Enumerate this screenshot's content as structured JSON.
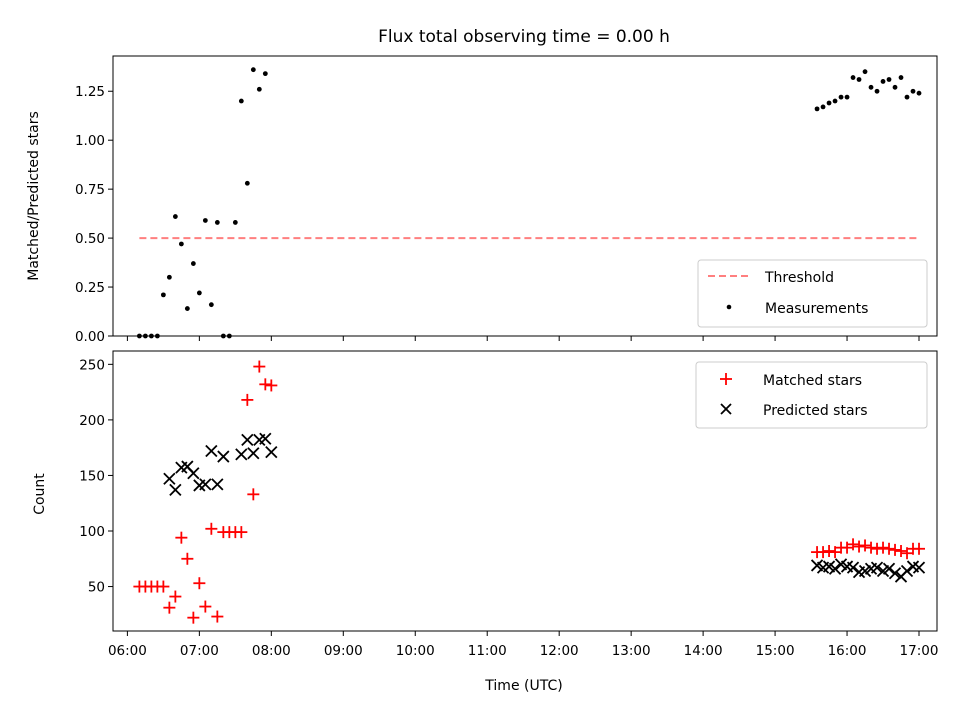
{
  "chart_data": [
    {
      "type": "scatter",
      "title": "Flux total observing time = 0.00 h",
      "xlabel": "",
      "ylabel": "Matched/Predicted stars",
      "xlim": [
        "05:48",
        "17:15"
      ],
      "ylim": [
        0,
        1.43
      ],
      "yticks": [
        "0.00",
        "0.25",
        "0.50",
        "0.75",
        "1.00",
        "1.25"
      ],
      "legend_position": "lower right",
      "threshold": {
        "label": "Threshold",
        "value": 0.5,
        "x_start": "06:10",
        "x_end": "17:00",
        "color": "#ff7f7f"
      },
      "series": [
        {
          "name": "Measurements",
          "marker": "dot",
          "color": "#000000",
          "x": [
            "06:10",
            "06:15",
            "06:20",
            "06:25",
            "06:30",
            "06:35",
            "06:40",
            "06:45",
            "06:50",
            "06:55",
            "07:00",
            "07:05",
            "07:10",
            "07:15",
            "07:20",
            "07:25",
            "07:30",
            "07:35",
            "07:40",
            "07:45",
            "07:50",
            "07:55",
            "08:00",
            "15:35",
            "15:40",
            "15:45",
            "15:50",
            "15:55",
            "16:00",
            "16:05",
            "16:10",
            "16:15",
            "16:20",
            "16:25",
            "16:30",
            "16:35",
            "16:40",
            "16:45",
            "16:50",
            "16:55",
            "17:00"
          ],
          "y": [
            0.0,
            0.0,
            0.0,
            0.0,
            0.21,
            0.3,
            0.61,
            0.47,
            0.14,
            0.37,
            0.22,
            0.59,
            0.16,
            0.58,
            0.0,
            0.0,
            0.58,
            1.2,
            0.78,
            1.36,
            1.26,
            1.34,
            null,
            1.16,
            1.17,
            1.19,
            1.2,
            1.22,
            1.22,
            1.32,
            1.31,
            1.35,
            1.27,
            1.25,
            1.3,
            1.31,
            1.27,
            1.32,
            1.22,
            1.25,
            1.24
          ]
        }
      ]
    },
    {
      "type": "scatter",
      "title": "",
      "xlabel": "Time (UTC)",
      "ylabel": "Count",
      "xlim": [
        "05:48",
        "17:15"
      ],
      "ylim": [
        10,
        262
      ],
      "yticks": [
        "50",
        "100",
        "150",
        "200",
        "250"
      ],
      "xticks": [
        "06:00",
        "07:00",
        "08:00",
        "09:00",
        "10:00",
        "11:00",
        "12:00",
        "13:00",
        "14:00",
        "15:00",
        "16:00",
        "17:00"
      ],
      "legend_position": "upper right",
      "series": [
        {
          "name": "Matched stars",
          "marker": "plus",
          "color": "#ff0000",
          "x": [
            "06:10",
            "06:15",
            "06:20",
            "06:25",
            "06:30",
            "06:35",
            "06:40",
            "06:45",
            "06:50",
            "06:55",
            "07:00",
            "07:05",
            "07:10",
            "07:15",
            "07:20",
            "07:25",
            "07:30",
            "07:35",
            "07:40",
            "07:45",
            "07:50",
            "07:55",
            "08:00",
            "15:35",
            "15:40",
            "15:45",
            "15:50",
            "15:55",
            "16:00",
            "16:05",
            "16:10",
            "16:15",
            "16:20",
            "16:25",
            "16:30",
            "16:35",
            "16:40",
            "16:45",
            "16:50",
            "16:55",
            "17:00"
          ],
          "y": [
            50,
            50,
            50,
            50,
            50,
            31,
            41,
            94,
            75,
            22,
            53,
            32,
            102,
            23,
            99,
            99,
            99,
            99,
            218,
            133,
            248,
            232,
            231,
            81,
            81,
            82,
            81,
            85,
            85,
            88,
            86,
            87,
            85,
            84,
            85,
            84,
            83,
            82,
            80,
            84,
            84
          ]
        },
        {
          "name": "Predicted stars",
          "marker": "x",
          "color": "#000000",
          "x": [
            "06:35",
            "06:40",
            "06:45",
            "06:50",
            "06:55",
            "07:00",
            "07:05",
            "07:10",
            "07:15",
            "07:20",
            "07:25",
            "07:30",
            "07:35",
            "07:40",
            "07:45",
            "07:50",
            "07:55",
            "08:00",
            "15:35",
            "15:40",
            "15:45",
            "15:50",
            "15:55",
            "16:00",
            "16:05",
            "16:10",
            "16:15",
            "16:20",
            "16:25",
            "16:30",
            "16:35",
            "16:40",
            "16:45",
            "16:50",
            "16:55",
            "17:00"
          ],
          "y": [
            147,
            137,
            157,
            158,
            152,
            141,
            142,
            172,
            142,
            167,
            null,
            null,
            169,
            182,
            170,
            182,
            183,
            171,
            69,
            67,
            68,
            66,
            70,
            68,
            67,
            63,
            64,
            66,
            67,
            64,
            66,
            62,
            59,
            64,
            68,
            67
          ]
        }
      ]
    }
  ]
}
